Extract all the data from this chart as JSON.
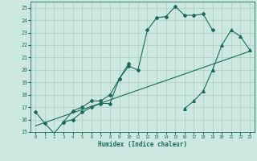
{
  "xlabel": "Humidex (Indice chaleur)",
  "bg_color": "#cce8e0",
  "grid_color": "#aaccc4",
  "line_color": "#1a6b5a",
  "xlim": [
    -0.5,
    23.5
  ],
  "ylim": [
    15,
    25.5
  ],
  "xticks": [
    0,
    1,
    2,
    3,
    4,
    5,
    6,
    7,
    8,
    9,
    10,
    11,
    12,
    13,
    14,
    15,
    16,
    17,
    18,
    19,
    20,
    21,
    22,
    23
  ],
  "yticks": [
    15,
    16,
    17,
    18,
    19,
    20,
    21,
    22,
    23,
    24,
    25
  ],
  "series": [
    {
      "x": [
        0,
        1,
        2,
        3,
        4,
        5,
        6,
        7,
        8,
        9,
        10,
        11,
        12,
        13,
        14,
        15,
        16,
        17,
        18,
        19
      ],
      "y": [
        16.6,
        15.7,
        14.9,
        15.8,
        16.0,
        16.6,
        17.0,
        17.3,
        17.3,
        19.3,
        20.3,
        20.0,
        23.2,
        24.2,
        24.3,
        25.1,
        24.4,
        24.4,
        24.5,
        23.2
      ],
      "marker": "D",
      "markersize": 2.0
    },
    {
      "x": [
        3,
        4,
        5,
        6,
        7,
        8,
        9,
        10
      ],
      "y": [
        15.8,
        16.7,
        17.0,
        17.5,
        17.5,
        18.0,
        19.3,
        20.5
      ],
      "marker": "D",
      "markersize": 2.0
    },
    {
      "x": [
        16,
        17,
        18,
        19,
        20,
        21,
        22,
        23
      ],
      "y": [
        16.9,
        17.5,
        18.3,
        20.0,
        22.0,
        23.2,
        22.7,
        21.6
      ],
      "marker": "^",
      "markersize": 2.5
    },
    {
      "x": [
        0,
        23
      ],
      "y": [
        15.5,
        21.5
      ],
      "marker": null,
      "markersize": 0
    }
  ]
}
